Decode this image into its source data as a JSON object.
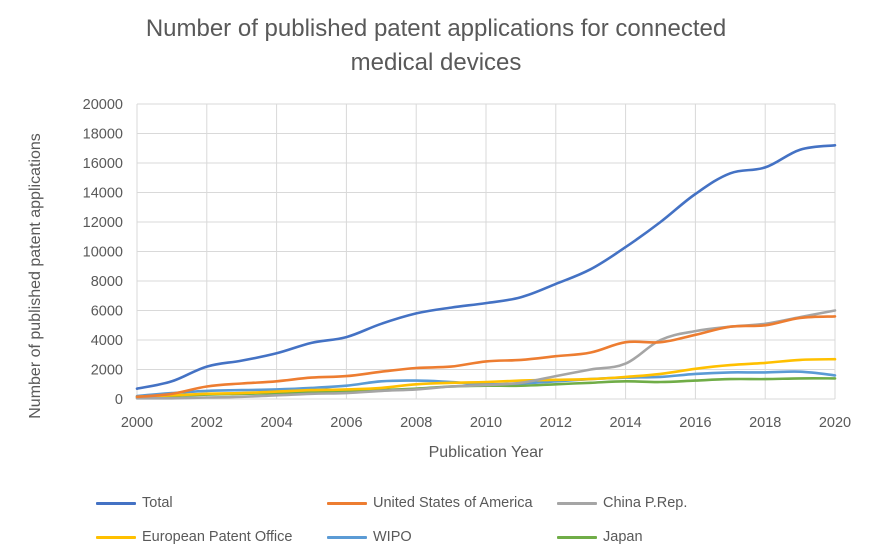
{
  "chart_data": {
    "type": "line",
    "title_line1": "Number of published patent applications for connected",
    "title_line2": "medical devices",
    "xlabel": "Publication Year",
    "ylabel": "Number of published patent applications",
    "xlim": [
      2000,
      2020
    ],
    "ylim": [
      0,
      20000
    ],
    "x_ticks": [
      "2000",
      "2002",
      "2004",
      "2006",
      "2008",
      "2010",
      "2012",
      "2014",
      "2016",
      "2018",
      "2020"
    ],
    "y_ticks": [
      "0",
      "2000",
      "4000",
      "6000",
      "8000",
      "10000",
      "12000",
      "14000",
      "16000",
      "18000",
      "20000"
    ],
    "grid": true,
    "legend_position": "bottom",
    "x": [
      2000,
      2001,
      2002,
      2003,
      2004,
      2005,
      2006,
      2007,
      2008,
      2009,
      2010,
      2011,
      2012,
      2013,
      2014,
      2015,
      2016,
      2017,
      2018,
      2019,
      2020
    ],
    "series": [
      {
        "name": "Total",
        "color": "#4472C4",
        "values": [
          700,
          1200,
          2200,
          2600,
          3100,
          3800,
          4200,
          5100,
          5800,
          6200,
          6500,
          6900,
          7800,
          8800,
          10300,
          12000,
          13900,
          15300,
          15700,
          16900,
          17200
        ]
      },
      {
        "name": "United States of America",
        "color": "#ED7D31",
        "values": [
          150,
          350,
          850,
          1050,
          1200,
          1450,
          1550,
          1850,
          2100,
          2200,
          2550,
          2650,
          2900,
          3150,
          3850,
          3850,
          4350,
          4900,
          5000,
          5500,
          5600
        ]
      },
      {
        "name": "China P.Rep.",
        "color": "#A5A5A5",
        "values": [
          50,
          50,
          100,
          150,
          250,
          350,
          400,
          550,
          650,
          850,
          950,
          1100,
          1550,
          2000,
          2400,
          4000,
          4600,
          4900,
          5100,
          5550,
          6000
        ]
      },
      {
        "name": "European Patent Office",
        "color": "#FFC000",
        "values": [
          150,
          250,
          350,
          400,
          500,
          600,
          650,
          750,
          1000,
          1100,
          1150,
          1250,
          1300,
          1350,
          1500,
          1700,
          2050,
          2300,
          2450,
          2650,
          2700
        ]
      },
      {
        "name": "WIPO",
        "color": "#5B9BD5",
        "values": [
          200,
          400,
          550,
          600,
          650,
          750,
          900,
          1200,
          1250,
          1150,
          1000,
          1050,
          1200,
          1350,
          1450,
          1500,
          1700,
          1800,
          1800,
          1850,
          1600
        ]
      },
      {
        "name": "Japan",
        "color": "#70AD47",
        "values": [
          100,
          200,
          300,
          350,
          400,
          450,
          500,
          600,
          700,
          850,
          900,
          900,
          1000,
          1100,
          1200,
          1150,
          1250,
          1350,
          1350,
          1400,
          1400
        ]
      }
    ]
  }
}
